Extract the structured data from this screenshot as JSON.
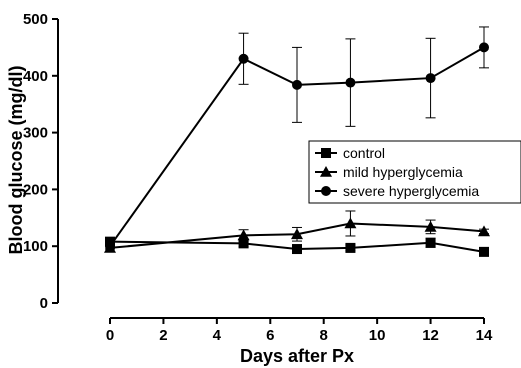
{
  "chart_data": {
    "type": "line",
    "title": "",
    "xlabel": "Days after Px",
    "ylabel": "Blood glucose (mg/dl)",
    "xlim": [
      0,
      14
    ],
    "ylim": [
      0,
      500
    ],
    "xticks": [
      0,
      2,
      4,
      6,
      8,
      10,
      12,
      14
    ],
    "yticks": [
      0,
      100,
      200,
      300,
      400,
      500
    ],
    "grid": false,
    "legend_position": "center-right",
    "series": [
      {
        "name": "control",
        "marker": "square",
        "points": [
          {
            "x": 0,
            "y": 108,
            "err": 5
          },
          {
            "x": 5,
            "y": 105,
            "err": 6
          },
          {
            "x": 7,
            "y": 95,
            "err": 5
          },
          {
            "x": 9,
            "y": 97,
            "err": 5
          },
          {
            "x": 12,
            "y": 106,
            "err": 8
          },
          {
            "x": 14,
            "y": 90,
            "err": 4
          }
        ]
      },
      {
        "name": "mild hyperglycemia",
        "marker": "triangle",
        "points": [
          {
            "x": 0,
            "y": 97,
            "err": 6
          },
          {
            "x": 5,
            "y": 119,
            "err": 10
          },
          {
            "x": 7,
            "y": 121,
            "err": 12
          },
          {
            "x": 9,
            "y": 140,
            "err": 22
          },
          {
            "x": 12,
            "y": 134,
            "err": 12
          },
          {
            "x": 14,
            "y": 126,
            "err": 4
          }
        ]
      },
      {
        "name": "severe hyperglycemia",
        "marker": "circle",
        "points": [
          {
            "x": 0,
            "y": 100,
            "err": 5
          },
          {
            "x": 5,
            "y": 430,
            "err": 45
          },
          {
            "x": 7,
            "y": 384,
            "err": 66
          },
          {
            "x": 9,
            "y": 388,
            "err": 77
          },
          {
            "x": 12,
            "y": 396,
            "err": 70
          },
          {
            "x": 14,
            "y": 450,
            "err": 36
          }
        ]
      }
    ]
  }
}
